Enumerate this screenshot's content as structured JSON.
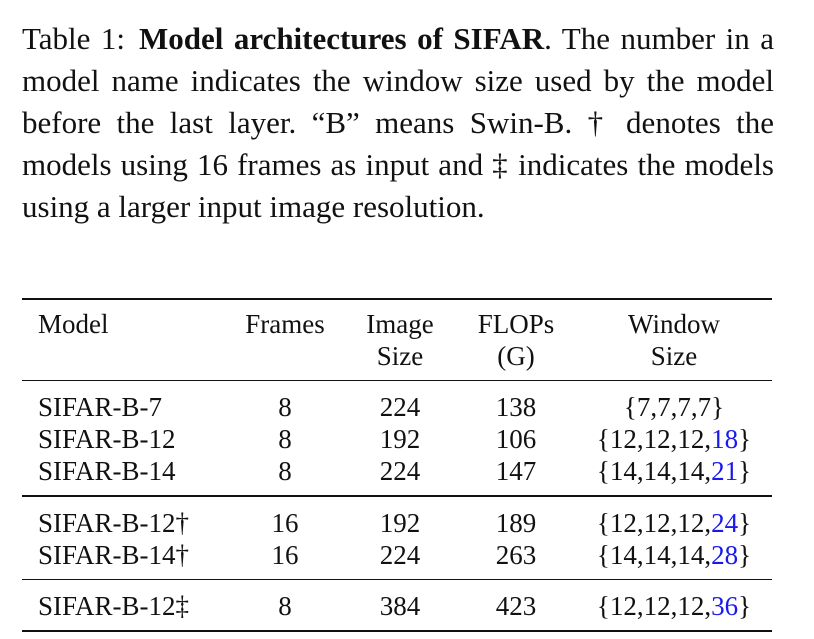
{
  "caption": {
    "label": "Table 1:",
    "title": "Model architectures of SIFAR",
    "text": ". The number in a model name indicates the window size used by the model before the last layer. “B” means Swin-B. † denotes the models using 16 frames as input and ‡ indicates the models using a larger input image resolution."
  },
  "table": {
    "headers": {
      "model": "Model",
      "frames": "Frames",
      "image_line1": "Image",
      "image_line2": "Size",
      "flops_line1": "FLOPs",
      "flops_line2": "(G)",
      "window_line1": "Window",
      "window_line2": "Size"
    },
    "groups": [
      [
        {
          "model": "SIFAR-B-7",
          "frames": "8",
          "image_size": "224",
          "flops": "138",
          "window_prefix": "{7,7,7,7}",
          "window_last": "",
          "window_suffix": ""
        },
        {
          "model": "SIFAR-B-12",
          "frames": "8",
          "image_size": "192",
          "flops": "106",
          "window_prefix": "{12,12,12,",
          "window_last": "18",
          "window_suffix": "}"
        },
        {
          "model": "SIFAR-B-14",
          "frames": "8",
          "image_size": "224",
          "flops": "147",
          "window_prefix": "{14,14,14,",
          "window_last": "21",
          "window_suffix": "}"
        }
      ],
      [
        {
          "model": "SIFAR-B-12†",
          "frames": "16",
          "image_size": "192",
          "flops": "189",
          "window_prefix": "{12,12,12,",
          "window_last": "24",
          "window_suffix": "}"
        },
        {
          "model": "SIFAR-B-14†",
          "frames": "16",
          "image_size": "224",
          "flops": "263",
          "window_prefix": "{14,14,14,",
          "window_last": "28",
          "window_suffix": "}"
        }
      ],
      [
        {
          "model": "SIFAR-B-12‡",
          "frames": "8",
          "image_size": "384",
          "flops": "423",
          "window_prefix": "{12,12,12,",
          "window_last": "36",
          "window_suffix": "}"
        }
      ]
    ]
  },
  "colors": {
    "text": "#111111",
    "link_blue": "#1a1aee"
  }
}
